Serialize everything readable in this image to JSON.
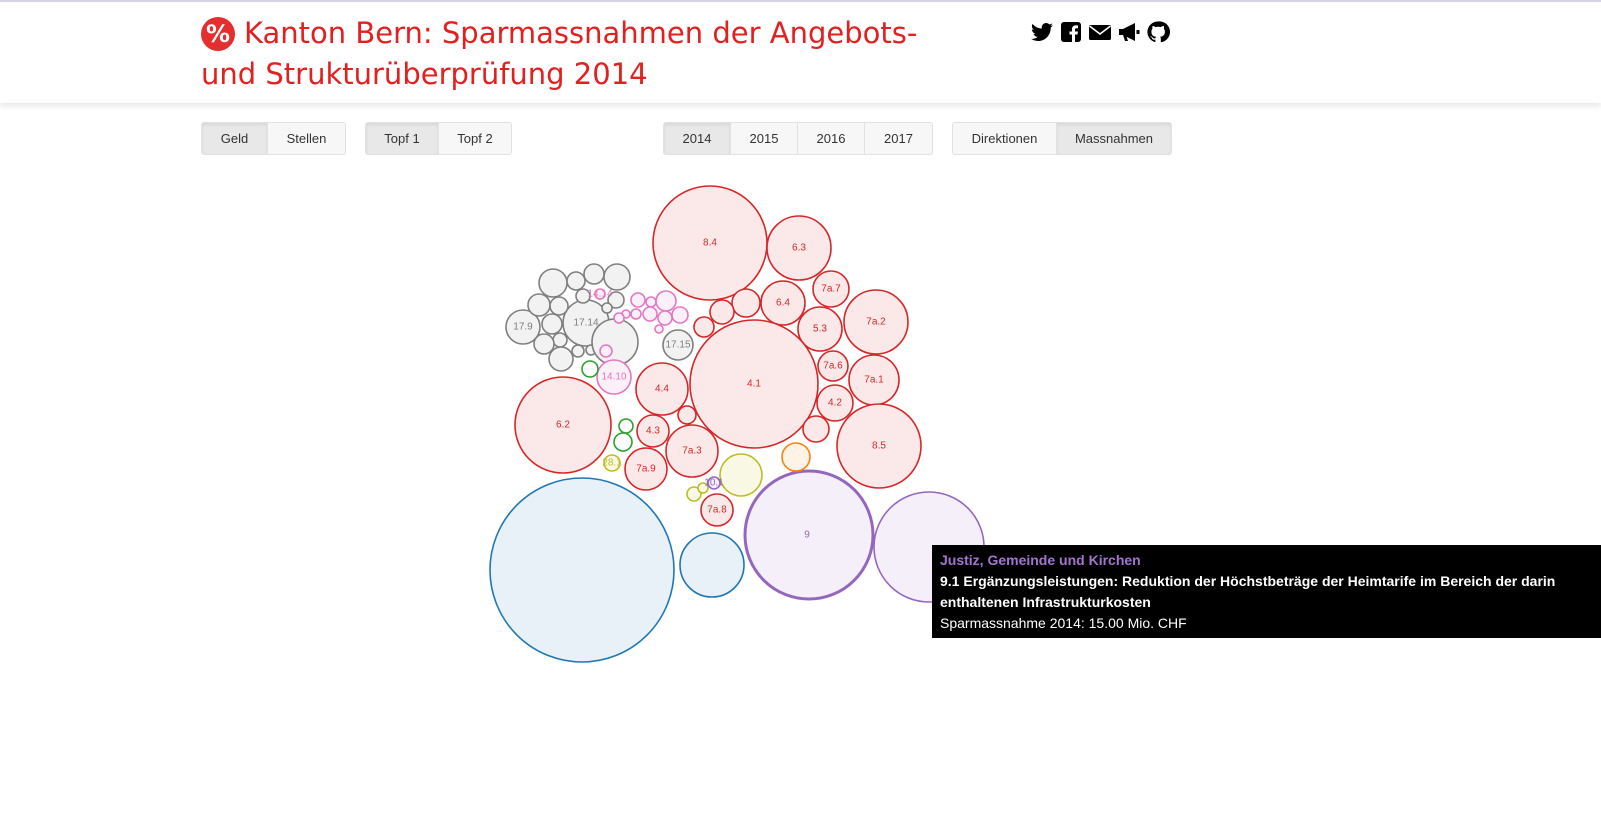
{
  "header": {
    "logo_symbol": "%",
    "title": "Kanton Bern: Sparmassnahmen der Angebots- und Strukturüberprüfung 2014",
    "social_icons": [
      "twitter-icon",
      "facebook-icon",
      "mail-icon",
      "megaphone-icon",
      "github-icon"
    ]
  },
  "controls": {
    "measure": {
      "options": [
        "Geld",
        "Stellen"
      ],
      "active": "Geld"
    },
    "topf": {
      "options": [
        "Topf 1",
        "Topf 2"
      ],
      "active": "Topf 1"
    },
    "year": {
      "options": [
        "2014",
        "2015",
        "2016",
        "2017"
      ],
      "active": "2014"
    },
    "view": {
      "options": [
        "Direktionen",
        "Massnahmen"
      ],
      "active": "Massnahmen"
    }
  },
  "colors": {
    "red": "#d62728",
    "red_fill": "#fbe9e9",
    "gray": "#7f7f7f",
    "gray_fill": "#f2f2f2",
    "pink": "#e377c2",
    "pink_fill": "#fcf0f8",
    "green": "#2ca02c",
    "olive": "#bcbd22",
    "olive_fill": "#f8f8e4",
    "purple": "#9467bd",
    "purple_fill": "#f4eff9",
    "blue": "#1f77b4",
    "blue_fill": "#e8f1f8",
    "orange": "#ff7f0e",
    "orange_fill": "#fff2e6"
  },
  "chart_data": {
    "type": "bubble",
    "bubbles": [
      {
        "label": "8.4",
        "group": "red"
      },
      {
        "label": "6.3",
        "group": "red"
      },
      {
        "label": "7a.7",
        "group": "red"
      },
      {
        "label": "6.4",
        "group": "red"
      },
      {
        "label": "",
        "group": "red"
      },
      {
        "label": "",
        "group": "red"
      },
      {
        "label": "",
        "group": "red"
      },
      {
        "label": "5.3",
        "group": "red"
      },
      {
        "label": "7a.2",
        "group": "red"
      },
      {
        "label": "4.1",
        "group": "red"
      },
      {
        "label": "7a.6",
        "group": "red"
      },
      {
        "label": "7a.1",
        "group": "red"
      },
      {
        "label": "4.2",
        "group": "red"
      },
      {
        "label": "4.4",
        "group": "red"
      },
      {
        "label": "6.2",
        "group": "red"
      },
      {
        "label": "",
        "group": "red"
      },
      {
        "label": "4.3",
        "group": "red"
      },
      {
        "label": "7a.3",
        "group": "red"
      },
      {
        "label": "",
        "group": "red"
      },
      {
        "label": "8.5",
        "group": "red"
      },
      {
        "label": "7a.9",
        "group": "red"
      },
      {
        "label": "7a.8",
        "group": "red"
      },
      {
        "label": "17.9",
        "group": "gray"
      },
      {
        "label": "17.14",
        "group": "gray"
      },
      {
        "label": "17.15",
        "group": "gray"
      },
      {
        "label": "",
        "group": "gray"
      },
      {
        "label": "",
        "group": "gray"
      },
      {
        "label": "",
        "group": "gray"
      },
      {
        "label": "",
        "group": "gray"
      },
      {
        "label": "",
        "group": "gray"
      },
      {
        "label": "",
        "group": "gray"
      },
      {
        "label": "",
        "group": "gray"
      },
      {
        "label": "",
        "group": "gray"
      },
      {
        "label": "",
        "group": "gray"
      },
      {
        "label": "",
        "group": "gray"
      },
      {
        "label": "",
        "group": "gray"
      },
      {
        "label": "",
        "group": "gray"
      },
      {
        "label": "",
        "group": "gray"
      },
      {
        "label": "",
        "group": "gray"
      },
      {
        "label": "",
        "group": "gray"
      },
      {
        "label": "",
        "group": "gray"
      },
      {
        "label": "14.10",
        "group": "pink"
      },
      {
        "label": "14.14",
        "group": "pink"
      },
      {
        "label": "",
        "group": "pink"
      },
      {
        "label": "",
        "group": "pink"
      },
      {
        "label": "",
        "group": "pink"
      },
      {
        "label": "",
        "group": "pink"
      },
      {
        "label": "",
        "group": "pink"
      },
      {
        "label": "",
        "group": "pink"
      },
      {
        "label": "",
        "group": "pink"
      },
      {
        "label": "",
        "group": "pink"
      },
      {
        "label": "",
        "group": "pink"
      },
      {
        "label": "",
        "group": "pink"
      },
      {
        "label": "",
        "group": "pink"
      },
      {
        "label": "",
        "group": "green"
      },
      {
        "label": "",
        "group": "green"
      },
      {
        "label": "",
        "group": "green"
      },
      {
        "label": "28.1",
        "group": "olive"
      },
      {
        "label": "",
        "group": "olive"
      },
      {
        "label": "",
        "group": "olive"
      },
      {
        "label": "",
        "group": "olive"
      },
      {
        "label": "10.1",
        "group": "purple"
      },
      {
        "label": "9",
        "group": "purple",
        "highlight": true
      },
      {
        "label": "",
        "group": "purple"
      },
      {
        "label": "",
        "group": "orange"
      },
      {
        "label": "",
        "group": "blue"
      },
      {
        "label": "",
        "group": "blue"
      }
    ]
  },
  "tooltip": {
    "category": "Justiz, Gemeinde und Kirchen",
    "title": "9.1 Ergänzungsleistungen: Reduktion der Höchstbeträge der Heimtarife im Bereich der darin enthaltenen Infrastrukturkosten",
    "value_text": "Sparmassnahme 2014: 15.00 Mio. CHF"
  }
}
